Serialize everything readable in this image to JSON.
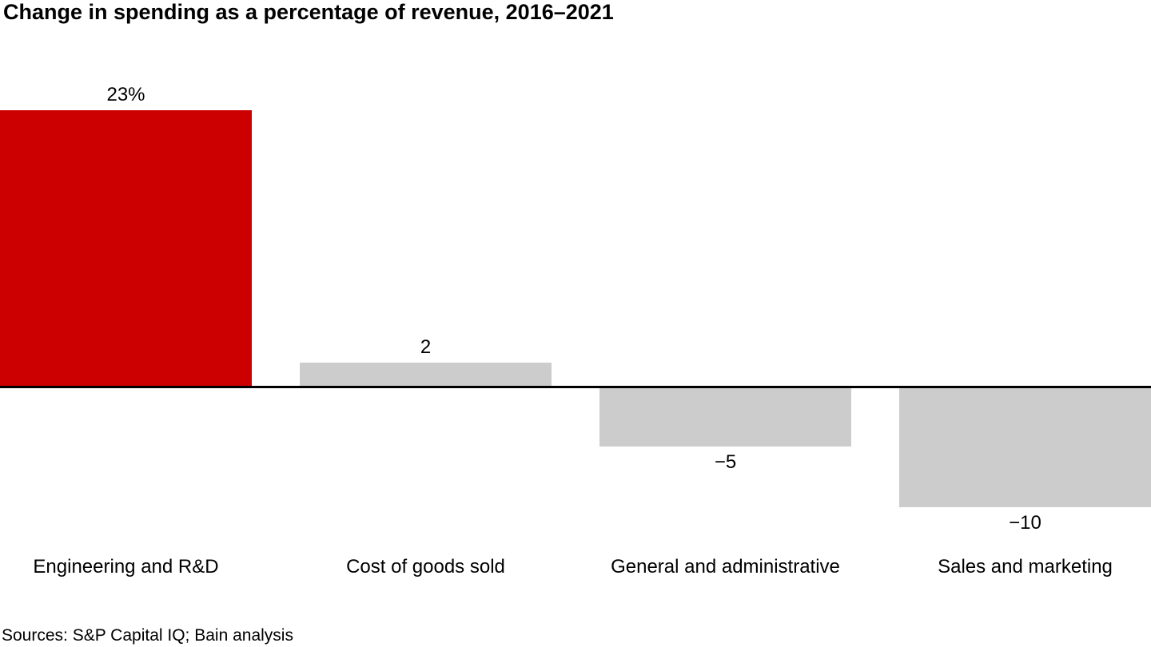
{
  "header": {
    "title": "Change in spending as a percentage of revenue, 2016–2021"
  },
  "footer": {
    "source": "Sources: S&P Capital IQ; Bain analysis"
  },
  "colors": {
    "highlight_red": "#cc0000",
    "neutral_gray": "#cccccc",
    "axis_black": "#000000"
  },
  "chart_data": {
    "type": "bar",
    "title": "Change in spending as a percentage of revenue, 2016–2021",
    "categories": [
      "Engineering and R&D",
      "Cost of goods sold",
      "General and administrative",
      "Sales and marketing"
    ],
    "values": [
      23,
      2,
      -5,
      -10
    ],
    "value_labels": [
      "23%",
      "2",
      "−5",
      "−10"
    ],
    "bar_colors": [
      "#cc0000",
      "#cccccc",
      "#cccccc",
      "#cccccc"
    ],
    "xlabel": "",
    "ylabel": "",
    "unit": "percentage points of revenue",
    "baseline": 0,
    "ylim": [
      -10,
      23
    ],
    "grid": false,
    "legend": false,
    "source": "Sources: S&P Capital IQ; Bain analysis"
  }
}
